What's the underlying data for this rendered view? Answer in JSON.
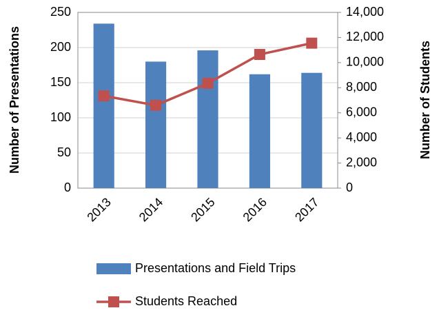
{
  "chart_data": {
    "type": "bar",
    "categories": [
      "2013",
      "2014",
      "2015",
      "2016",
      "2017"
    ],
    "y_label": "Number of Presentations",
    "y2_label": "Number of Students",
    "series": [
      {
        "name": "Presentations and Field Trips",
        "color": "#4f81bd",
        "type": "bar",
        "values": [
          234,
          180,
          196,
          162,
          164
        ]
      },
      {
        "name": "Students Reached",
        "color": "#c0504d",
        "type": "line",
        "axis": "y2",
        "values": [
          7350,
          6600,
          8350,
          10650,
          11550
        ]
      }
    ],
    "ylim": [
      0,
      250
    ],
    "yticks": [
      0,
      50,
      100,
      150,
      200,
      250
    ],
    "y2lim": [
      0,
      14000
    ],
    "y2ticks": [
      0,
      {
        "value": 2000,
        "label": "2,000"
      },
      {
        "value": 4000,
        "label": "4,000"
      },
      {
        "value": 6000,
        "label": "6,000"
      },
      {
        "value": 8000,
        "label": "8,000"
      },
      {
        "value": 10000,
        "label": "10,000"
      },
      {
        "value": 12000,
        "label": "12,000"
      },
      {
        "value": 14000,
        "label": "14,000"
      }
    ],
    "grid": true,
    "legend": "bottom"
  }
}
